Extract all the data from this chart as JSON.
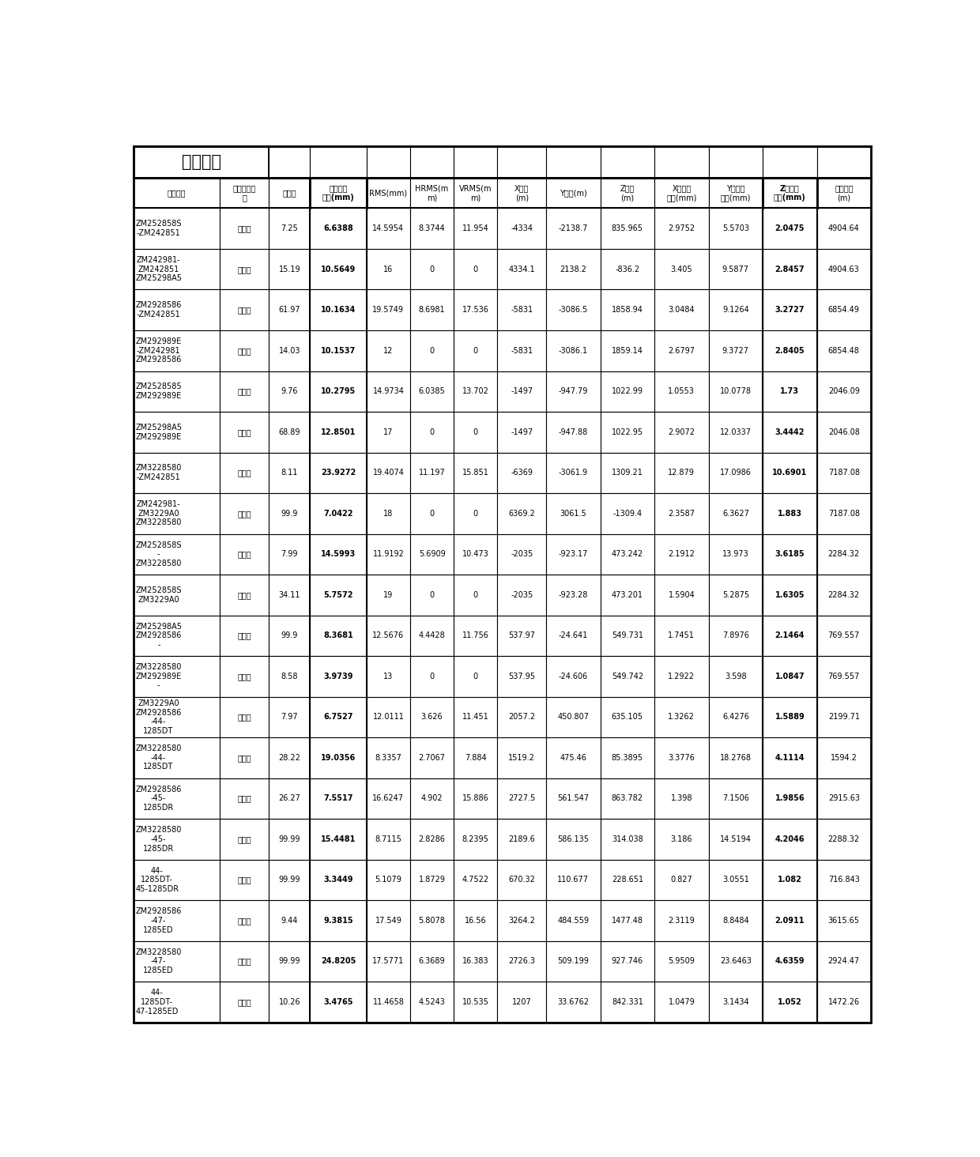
{
  "title": "解算结果",
  "headers_line1": [
    "基线名称",
    "基线固定情",
    "方差比",
    "单位权中",
    "RMS(mm)",
    "HRMS(m",
    "VRMS(m",
    "X分量",
    "Y分量(m)",
    "Z分量",
    "X分量中",
    "Y分量中",
    "Z分量中",
    "基线长度"
  ],
  "headers_line2": [
    "",
    "况",
    "",
    "误差(mm)",
    "",
    "m)",
    "m)",
    "(m)",
    "",
    "(m)",
    "误差(mm)",
    "误差(mm)",
    "误差(mm)",
    "(m)"
  ],
  "col_widths_rel": [
    1.15,
    0.65,
    0.55,
    0.75,
    0.58,
    0.58,
    0.58,
    0.65,
    0.72,
    0.72,
    0.72,
    0.72,
    0.72,
    0.72
  ],
  "rows": [
    [
      "ZM252858S\n-ZM242851",
      "固定解",
      "7.25",
      "6.6388",
      "14.5954",
      "8.3744",
      "11.954",
      "-4334",
      "-2138.7",
      "835.965",
      "2.9752",
      "5.5703",
      "2.0475",
      "4904.64"
    ],
    [
      "ZM242981-\nZM242851\nZM25298A5",
      "固定解",
      "15.19",
      "10.5649",
      "16",
      "0",
      "0",
      "4334.1",
      "2138.2",
      "-836.2",
      "3.405",
      "9.5877",
      "2.8457",
      "4904.63"
    ],
    [
      "ZM2928586\n-ZM242851",
      "固定解",
      "61.97",
      "10.1634",
      "19.5749",
      "8.6981",
      "17.536",
      "-5831",
      "-3086.5",
      "1858.94",
      "3.0484",
      "9.1264",
      "3.2727",
      "6854.49"
    ],
    [
      "ZM292989E\n-ZM242981\nZM2928586",
      "固定解",
      "14.03",
      "10.1537",
      "12",
      "0",
      "0",
      "-5831",
      "-3086.1",
      "1859.14",
      "2.6797",
      "9.3727",
      "2.8405",
      "6854.48"
    ],
    [
      "ZM2528585\nZM292989E",
      "固定解",
      "9.76",
      "10.2795",
      "14.9734",
      "6.0385",
      "13.702",
      "-1497",
      "-947.79",
      "1022.99",
      "1.0553",
      "10.0778",
      "1.73",
      "2046.09"
    ],
    [
      "ZM25298A5\nZM292989E",
      "固定解",
      "68.89",
      "12.8501",
      "17",
      "0",
      "0",
      "-1497",
      "-947.88",
      "1022.95",
      "2.9072",
      "12.0337",
      "3.4442",
      "2046.08"
    ],
    [
      "ZM3228580\n-ZM242851",
      "固定解",
      "8.11",
      "23.9272",
      "19.4074",
      "11.197",
      "15.851",
      "-6369",
      "-3061.9",
      "1309.21",
      "12.879",
      "17.0986",
      "10.6901",
      "7187.08"
    ],
    [
      "ZM242981-\nZM3229A0\nZM3228580",
      "固定解",
      "99.9",
      "7.0422",
      "18",
      "0",
      "0",
      "6369.2",
      "3061.5",
      "-1309.4",
      "2.3587",
      "6.3627",
      "1.883",
      "7187.08"
    ],
    [
      "ZM252858S\n-\nZM3228580",
      "固定解",
      "7.99",
      "14.5993",
      "11.9192",
      "5.6909",
      "10.473",
      "-2035",
      "-923.17",
      "473.242",
      "2.1912",
      "13.973",
      "3.6185",
      "2284.32"
    ],
    [
      "ZM252858S\nZM3229A0",
      "固定解",
      "34.11",
      "5.7572",
      "19",
      "0",
      "0",
      "-2035",
      "-923.28",
      "473.201",
      "1.5904",
      "5.2875",
      "1.6305",
      "2284.32"
    ],
    [
      "ZM25298A5\nZM2928586\n-",
      "固定解",
      "99.9",
      "8.3681",
      "12.5676",
      "4.4428",
      "11.756",
      "537.97",
      "-24.641",
      "549.731",
      "1.7451",
      "7.8976",
      "2.1464",
      "769.557"
    ],
    [
      "ZM3228580\nZM292989E\n-",
      "固定解",
      "8.58",
      "3.9739",
      "13",
      "0",
      "0",
      "537.95",
      "-24.606",
      "549.742",
      "1.2922",
      "3.598",
      "1.0847",
      "769.557"
    ],
    [
      "ZM3229A0\nZM2928586\n-44-\n1285DT",
      "固定解",
      "7.97",
      "6.7527",
      "12.0111",
      "3.626",
      "11.451",
      "2057.2",
      "450.807",
      "635.105",
      "1.3262",
      "6.4276",
      "1.5889",
      "2199.71"
    ],
    [
      "ZM3228580\n-44-\n1285DT",
      "固定解",
      "28.22",
      "19.0356",
      "8.3357",
      "2.7067",
      "7.884",
      "1519.2",
      "475.46",
      "85.3895",
      "3.3776",
      "18.2768",
      "4.1114",
      "1594.2"
    ],
    [
      "ZM2928586\n-45-\n1285DR",
      "固定解",
      "26.27",
      "7.5517",
      "16.6247",
      "4.902",
      "15.886",
      "2727.5",
      "561.547",
      "863.782",
      "1.398",
      "7.1506",
      "1.9856",
      "2915.63"
    ],
    [
      "ZM3228580\n-45-\n1285DR",
      "固定解",
      "99.99",
      "15.4481",
      "8.7115",
      "2.8286",
      "8.2395",
      "2189.6",
      "586.135",
      "314.038",
      "3.186",
      "14.5194",
      "4.2046",
      "2288.32"
    ],
    [
      "44-\n1285DT-\n45-1285DR",
      "固定解",
      "99.99",
      "3.3449",
      "5.1079",
      "1.8729",
      "4.7522",
      "670.32",
      "110.677",
      "228.651",
      "0.827",
      "3.0551",
      "1.082",
      "716.843"
    ],
    [
      "ZM2928586\n-47-\n1285ED",
      "固定解",
      "9.44",
      "9.3815",
      "17.549",
      "5.8078",
      "16.56",
      "3264.2",
      "484.559",
      "1477.48",
      "2.3119",
      "8.8484",
      "2.0911",
      "3615.65"
    ],
    [
      "ZM3228580\n-47-\n1285ED",
      "固定解",
      "99.99",
      "24.8205",
      "17.5771",
      "6.3689",
      "16.383",
      "2726.3",
      "509.199",
      "927.746",
      "5.9509",
      "23.6463",
      "4.6359",
      "2924.47"
    ],
    [
      "44-\n1285DT-\n47-1285ED",
      "固定解",
      "10.26",
      "3.4765",
      "11.4658",
      "4.5243",
      "10.535",
      "1207",
      "33.6762",
      "842.331",
      "1.0479",
      "3.1434",
      "1.052",
      "1472.26"
    ]
  ],
  "bold_col_indices": [
    3,
    12
  ],
  "n_title_cols": 2,
  "header_bold_col3_label": "单位权中\n误差(mm)",
  "header_bold_col12_label": "Z分量中\n误差(mm)"
}
